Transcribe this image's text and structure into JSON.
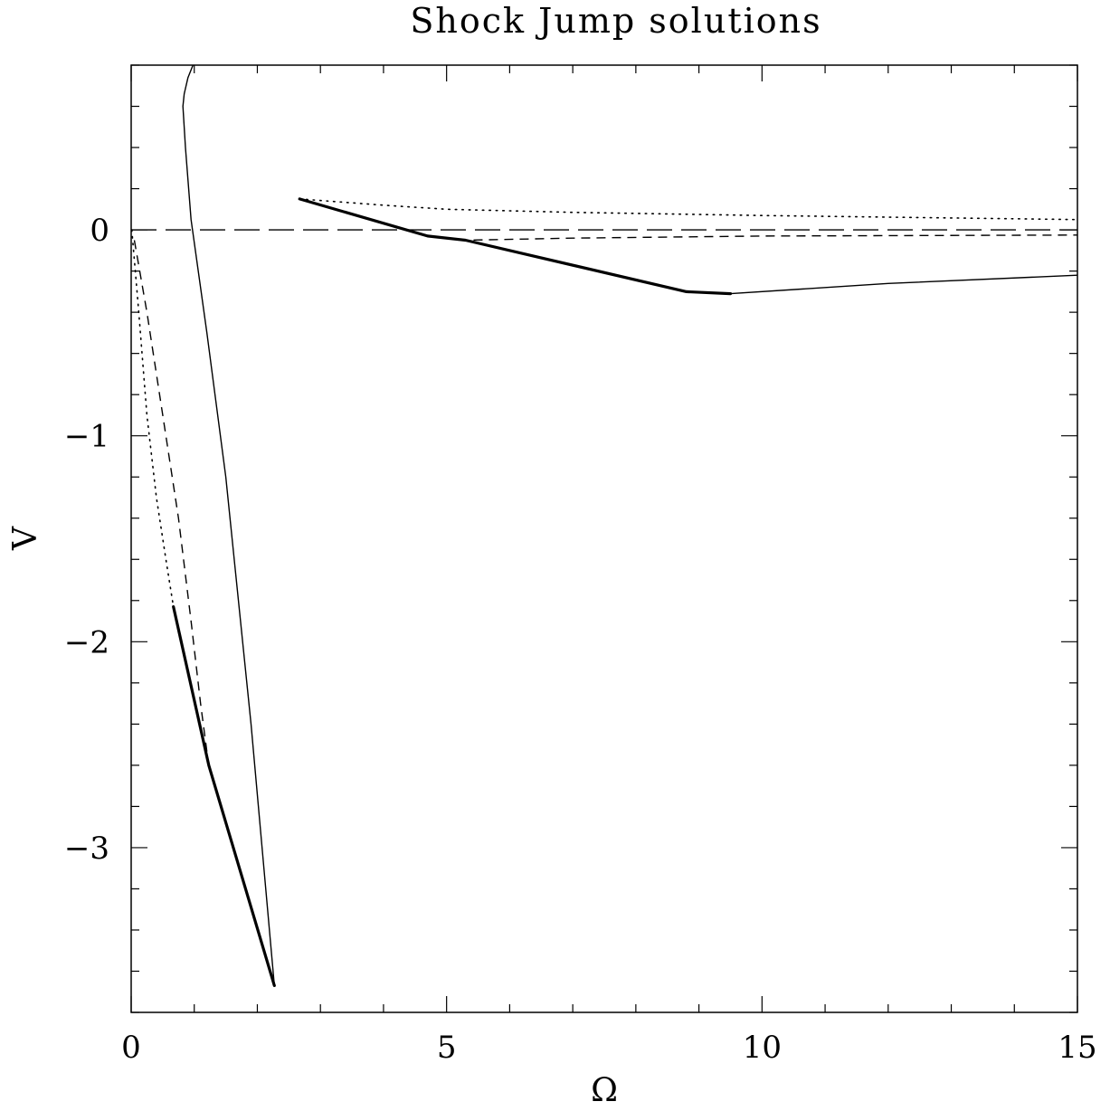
{
  "chart_data": {
    "type": "line",
    "title": "Shock Jump solutions",
    "xlabel": "Ω",
    "ylabel": "V",
    "xlim": [
      0,
      15
    ],
    "ylim": [
      -3.8,
      0.8
    ],
    "x_ticks": [
      0,
      5,
      10,
      15
    ],
    "x_tick_labels": [
      "0",
      "5",
      "10",
      "15"
    ],
    "y_ticks": [
      0,
      -1,
      -2,
      -3
    ],
    "y_tick_labels": [
      "0",
      "−1",
      "−2",
      "−3"
    ],
    "x_minor_step": 1,
    "y_minor_step": 0.2,
    "grid": false,
    "legend": false,
    "colors": {
      "line": "#000000",
      "background": "#ffffff"
    },
    "series": [
      {
        "style": "long-dashed",
        "points": [
          [
            0,
            0
          ],
          [
            15,
            0
          ]
        ]
      },
      {
        "style": "thin-solid",
        "points": [
          [
            2.27,
            -3.67
          ],
          [
            1.9,
            -2.4
          ],
          [
            1.5,
            -1.2
          ],
          [
            1.2,
            -0.5
          ],
          [
            0.95,
            0.05
          ],
          [
            0.86,
            0.4
          ],
          [
            0.82,
            0.6
          ],
          [
            0.84,
            0.66
          ],
          [
            0.9,
            0.74
          ],
          [
            0.98,
            0.8
          ]
        ]
      },
      {
        "style": "thick-solid",
        "points": [
          [
            0.67,
            -1.83
          ],
          [
            1.23,
            -2.6
          ],
          [
            2.27,
            -3.67
          ]
        ]
      },
      {
        "style": "dotted",
        "points": [
          [
            0.01,
            0
          ],
          [
            0.12,
            -0.4
          ],
          [
            0.25,
            -0.9
          ],
          [
            0.4,
            -1.3
          ],
          [
            0.55,
            -1.6
          ],
          [
            0.67,
            -1.83
          ]
        ]
      },
      {
        "style": "dashed",
        "points": [
          [
            0.05,
            -0.05
          ],
          [
            0.25,
            -0.4
          ],
          [
            0.5,
            -0.9
          ],
          [
            0.75,
            -1.4
          ],
          [
            0.95,
            -1.9
          ],
          [
            1.1,
            -2.3
          ],
          [
            1.22,
            -2.58
          ]
        ]
      },
      {
        "style": "thick-solid",
        "points": [
          [
            2.67,
            0.15
          ],
          [
            4.7,
            -0.03
          ],
          [
            5.3,
            -0.05
          ],
          [
            8.8,
            -0.3
          ],
          [
            9.5,
            -0.31
          ]
        ]
      },
      {
        "style": "thin-solid",
        "points": [
          [
            9.5,
            -0.31
          ],
          [
            12,
            -0.26
          ],
          [
            15,
            -0.22
          ]
        ]
      },
      {
        "style": "dotted",
        "points": [
          [
            2.67,
            0.15
          ],
          [
            4,
            0.12
          ],
          [
            5,
            0.1
          ],
          [
            7,
            0.085
          ],
          [
            10,
            0.07
          ],
          [
            15,
            0.05
          ]
        ]
      },
      {
        "style": "dashed",
        "points": [
          [
            4.7,
            -0.03
          ],
          [
            5.3,
            -0.05
          ],
          [
            7,
            -0.04
          ],
          [
            10,
            -0.03
          ],
          [
            15,
            -0.025
          ]
        ]
      }
    ]
  }
}
